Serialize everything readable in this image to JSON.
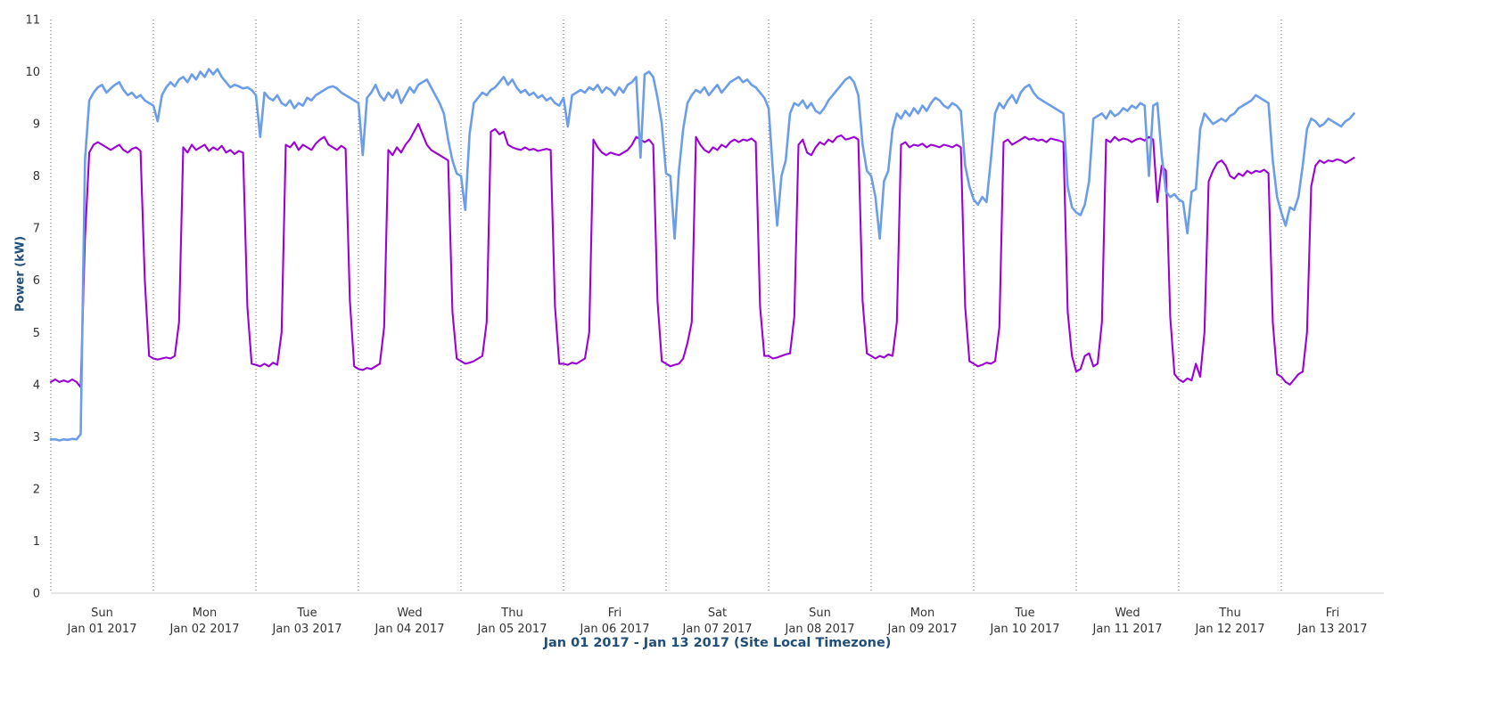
{
  "chart_data": {
    "type": "line",
    "title": "",
    "xlabel": "Jan 01 2017 - Jan 13 2017 (Site Local Timezone)",
    "ylabel": "Power (kW)",
    "ylim": [
      0,
      11
    ],
    "y_ticks": [
      0,
      1,
      2,
      3,
      4,
      5,
      6,
      7,
      8,
      9,
      10,
      11
    ],
    "x_total_hours": 312,
    "x_hours_per_day": 24,
    "grid": "vertical-dotted-per-day",
    "legend": "none",
    "colors": {
      "series_blue": "#6B9DE8",
      "series_purple": "#9B00D6",
      "axis_title": "#1F4E79",
      "tick_text": "#333333",
      "gridline": "#5A5F66",
      "baseline": "#C8CDD2"
    },
    "day_labels": [
      {
        "weekday": "Sun",
        "date": "Jan 01 2017"
      },
      {
        "weekday": "Mon",
        "date": "Jan 02 2017"
      },
      {
        "weekday": "Tue",
        "date": "Jan 03 2017"
      },
      {
        "weekday": "Wed",
        "date": "Jan 04 2017"
      },
      {
        "weekday": "Thu",
        "date": "Jan 05 2017"
      },
      {
        "weekday": "Fri",
        "date": "Jan 06 2017"
      },
      {
        "weekday": "Sat",
        "date": "Jan 07 2017"
      },
      {
        "weekday": "Sun",
        "date": "Jan 08 2017"
      },
      {
        "weekday": "Mon",
        "date": "Jan 09 2017"
      },
      {
        "weekday": "Tue",
        "date": "Jan 10 2017"
      },
      {
        "weekday": "Wed",
        "date": "Jan 11 2017"
      },
      {
        "weekday": "Thu",
        "date": "Jan 12 2017"
      },
      {
        "weekday": "Fri",
        "date": "Jan 13 2017"
      }
    ],
    "series": [
      {
        "name": "series-blue",
        "color": "#6B9DE8",
        "x_step_hours": 1,
        "values": [
          2.95,
          2.95,
          2.93,
          2.95,
          2.94,
          2.96,
          2.95,
          3.05,
          8.3,
          9.45,
          9.6,
          9.7,
          9.75,
          9.6,
          9.68,
          9.75,
          9.8,
          9.65,
          9.55,
          9.6,
          9.5,
          9.55,
          9.45,
          9.4,
          9.35,
          9.05,
          9.55,
          9.7,
          9.8,
          9.72,
          9.85,
          9.9,
          9.8,
          9.95,
          9.85,
          10.0,
          9.9,
          10.05,
          9.95,
          10.05,
          9.9,
          9.8,
          9.7,
          9.75,
          9.72,
          9.68,
          9.7,
          9.65,
          9.55,
          8.75,
          9.6,
          9.5,
          9.45,
          9.55,
          9.4,
          9.35,
          9.45,
          9.3,
          9.4,
          9.35,
          9.5,
          9.45,
          9.55,
          9.6,
          9.65,
          9.7,
          9.72,
          9.68,
          9.6,
          9.55,
          9.5,
          9.45,
          9.4,
          8.4,
          9.5,
          9.6,
          9.75,
          9.55,
          9.45,
          9.6,
          9.5,
          9.65,
          9.4,
          9.55,
          9.7,
          9.6,
          9.75,
          9.8,
          9.85,
          9.7,
          9.55,
          9.4,
          9.2,
          8.7,
          8.3,
          8.05,
          8.0,
          7.35,
          8.8,
          9.4,
          9.5,
          9.6,
          9.55,
          9.65,
          9.7,
          9.8,
          9.9,
          9.75,
          9.85,
          9.7,
          9.6,
          9.65,
          9.55,
          9.6,
          9.5,
          9.55,
          9.45,
          9.5,
          9.4,
          9.35,
          9.5,
          8.95,
          9.55,
          9.6,
          9.65,
          9.6,
          9.7,
          9.65,
          9.75,
          9.6,
          9.7,
          9.65,
          9.55,
          9.7,
          9.6,
          9.75,
          9.8,
          9.9,
          8.35,
          9.95,
          10.0,
          9.9,
          9.5,
          9.0,
          8.05,
          8.0,
          6.8,
          8.1,
          8.9,
          9.4,
          9.55,
          9.65,
          9.6,
          9.7,
          9.55,
          9.65,
          9.75,
          9.6,
          9.7,
          9.8,
          9.85,
          9.9,
          9.8,
          9.85,
          9.75,
          9.7,
          9.6,
          9.5,
          9.3,
          8.1,
          7.05,
          8.0,
          8.3,
          9.2,
          9.4,
          9.35,
          9.45,
          9.3,
          9.4,
          9.25,
          9.2,
          9.3,
          9.45,
          9.55,
          9.65,
          9.75,
          9.85,
          9.9,
          9.8,
          9.55,
          8.6,
          8.1,
          8.0,
          7.6,
          6.8,
          7.9,
          8.1,
          8.9,
          9.2,
          9.1,
          9.25,
          9.15,
          9.3,
          9.2,
          9.35,
          9.25,
          9.4,
          9.5,
          9.45,
          9.35,
          9.3,
          9.4,
          9.35,
          9.25,
          8.2,
          7.8,
          7.55,
          7.45,
          7.6,
          7.5,
          8.3,
          9.2,
          9.4,
          9.3,
          9.45,
          9.55,
          9.4,
          9.6,
          9.7,
          9.75,
          9.6,
          9.5,
          9.45,
          9.4,
          9.35,
          9.3,
          9.25,
          9.2,
          7.8,
          7.4,
          7.3,
          7.25,
          7.45,
          7.9,
          9.1,
          9.15,
          9.2,
          9.1,
          9.25,
          9.15,
          9.2,
          9.3,
          9.25,
          9.35,
          9.3,
          9.4,
          9.35,
          8.0,
          9.35,
          9.4,
          8.4,
          7.7,
          7.6,
          7.65,
          7.55,
          7.5,
          6.9,
          7.7,
          7.75,
          8.9,
          9.2,
          9.1,
          9.0,
          9.05,
          9.1,
          9.05,
          9.15,
          9.2,
          9.3,
          9.35,
          9.4,
          9.45,
          9.55,
          9.5,
          9.45,
          9.4,
          8.3,
          7.6,
          7.3,
          7.05,
          7.4,
          7.35,
          7.6,
          8.2,
          8.9,
          9.1,
          9.05,
          8.95,
          9.0,
          9.1,
          9.05,
          9.0,
          8.95,
          9.05,
          9.1,
          9.2
        ]
      },
      {
        "name": "series-purple",
        "color": "#9B00D6",
        "x_step_hours": 1,
        "values": [
          4.05,
          4.1,
          4.05,
          4.08,
          4.05,
          4.1,
          4.05,
          3.95,
          6.8,
          8.45,
          8.6,
          8.65,
          8.6,
          8.55,
          8.5,
          8.55,
          8.6,
          8.5,
          8.45,
          8.52,
          8.55,
          8.48,
          6.0,
          4.55,
          4.5,
          4.48,
          4.5,
          4.52,
          4.5,
          4.55,
          5.2,
          8.55,
          8.45,
          8.6,
          8.5,
          8.55,
          8.6,
          8.48,
          8.55,
          8.5,
          8.58,
          8.45,
          8.5,
          8.42,
          8.48,
          8.45,
          5.5,
          4.4,
          4.38,
          4.35,
          4.4,
          4.35,
          4.42,
          4.38,
          5.0,
          8.6,
          8.55,
          8.65,
          8.5,
          8.6,
          8.55,
          8.5,
          8.62,
          8.7,
          8.75,
          8.6,
          8.55,
          8.5,
          8.58,
          8.52,
          5.6,
          4.35,
          4.3,
          4.28,
          4.32,
          4.3,
          4.35,
          4.4,
          5.1,
          8.5,
          8.4,
          8.55,
          8.45,
          8.6,
          8.7,
          8.85,
          9.0,
          8.8,
          8.6,
          8.5,
          8.45,
          8.4,
          8.35,
          8.3,
          5.4,
          4.5,
          4.45,
          4.4,
          4.42,
          4.45,
          4.5,
          4.55,
          5.2,
          8.85,
          8.9,
          8.8,
          8.85,
          8.6,
          8.55,
          8.52,
          8.5,
          8.55,
          8.5,
          8.52,
          8.48,
          8.5,
          8.52,
          8.5,
          5.5,
          4.4,
          4.4,
          4.38,
          4.42,
          4.4,
          4.45,
          4.5,
          5.0,
          8.7,
          8.55,
          8.45,
          8.4,
          8.45,
          8.42,
          8.4,
          8.45,
          8.5,
          8.6,
          8.75,
          8.7,
          8.65,
          8.7,
          8.6,
          5.6,
          4.45,
          4.4,
          4.35,
          4.38,
          4.4,
          4.5,
          4.8,
          5.2,
          8.75,
          8.6,
          8.5,
          8.45,
          8.55,
          8.5,
          8.6,
          8.55,
          8.65,
          8.7,
          8.65,
          8.7,
          8.68,
          8.72,
          8.65,
          5.5,
          4.55,
          4.55,
          4.5,
          4.52,
          4.55,
          4.58,
          4.6,
          5.3,
          8.6,
          8.7,
          8.45,
          8.4,
          8.55,
          8.65,
          8.6,
          8.7,
          8.65,
          8.75,
          8.78,
          8.7,
          8.72,
          8.75,
          8.7,
          5.6,
          4.6,
          4.55,
          4.5,
          4.55,
          4.52,
          4.58,
          4.55,
          5.2,
          8.6,
          8.65,
          8.55,
          8.6,
          8.58,
          8.62,
          8.55,
          8.6,
          8.58,
          8.55,
          8.6,
          8.58,
          8.55,
          8.6,
          8.55,
          5.5,
          4.45,
          4.4,
          4.35,
          4.38,
          4.42,
          4.4,
          4.45,
          5.1,
          8.65,
          8.7,
          8.6,
          8.65,
          8.7,
          8.75,
          8.7,
          8.72,
          8.68,
          8.7,
          8.65,
          8.72,
          8.7,
          8.68,
          8.65,
          5.4,
          4.55,
          4.25,
          4.3,
          4.55,
          4.6,
          4.35,
          4.4,
          5.2,
          8.7,
          8.65,
          8.75,
          8.68,
          8.72,
          8.7,
          8.65,
          8.7,
          8.72,
          8.68,
          8.75,
          8.7,
          7.5,
          8.2,
          8.1,
          5.3,
          4.2,
          4.1,
          4.05,
          4.12,
          4.08,
          4.4,
          4.15,
          5.0,
          7.9,
          8.1,
          8.25,
          8.3,
          8.2,
          8.0,
          7.95,
          8.05,
          8.0,
          8.1,
          8.05,
          8.1,
          8.08,
          8.12,
          8.05,
          5.2,
          4.2,
          4.15,
          4.05,
          4.0,
          4.1,
          4.2,
          4.25,
          5.0,
          7.8,
          8.2,
          8.3,
          8.25,
          8.3,
          8.28,
          8.32,
          8.3,
          8.25,
          8.3,
          8.35
        ]
      }
    ]
  }
}
